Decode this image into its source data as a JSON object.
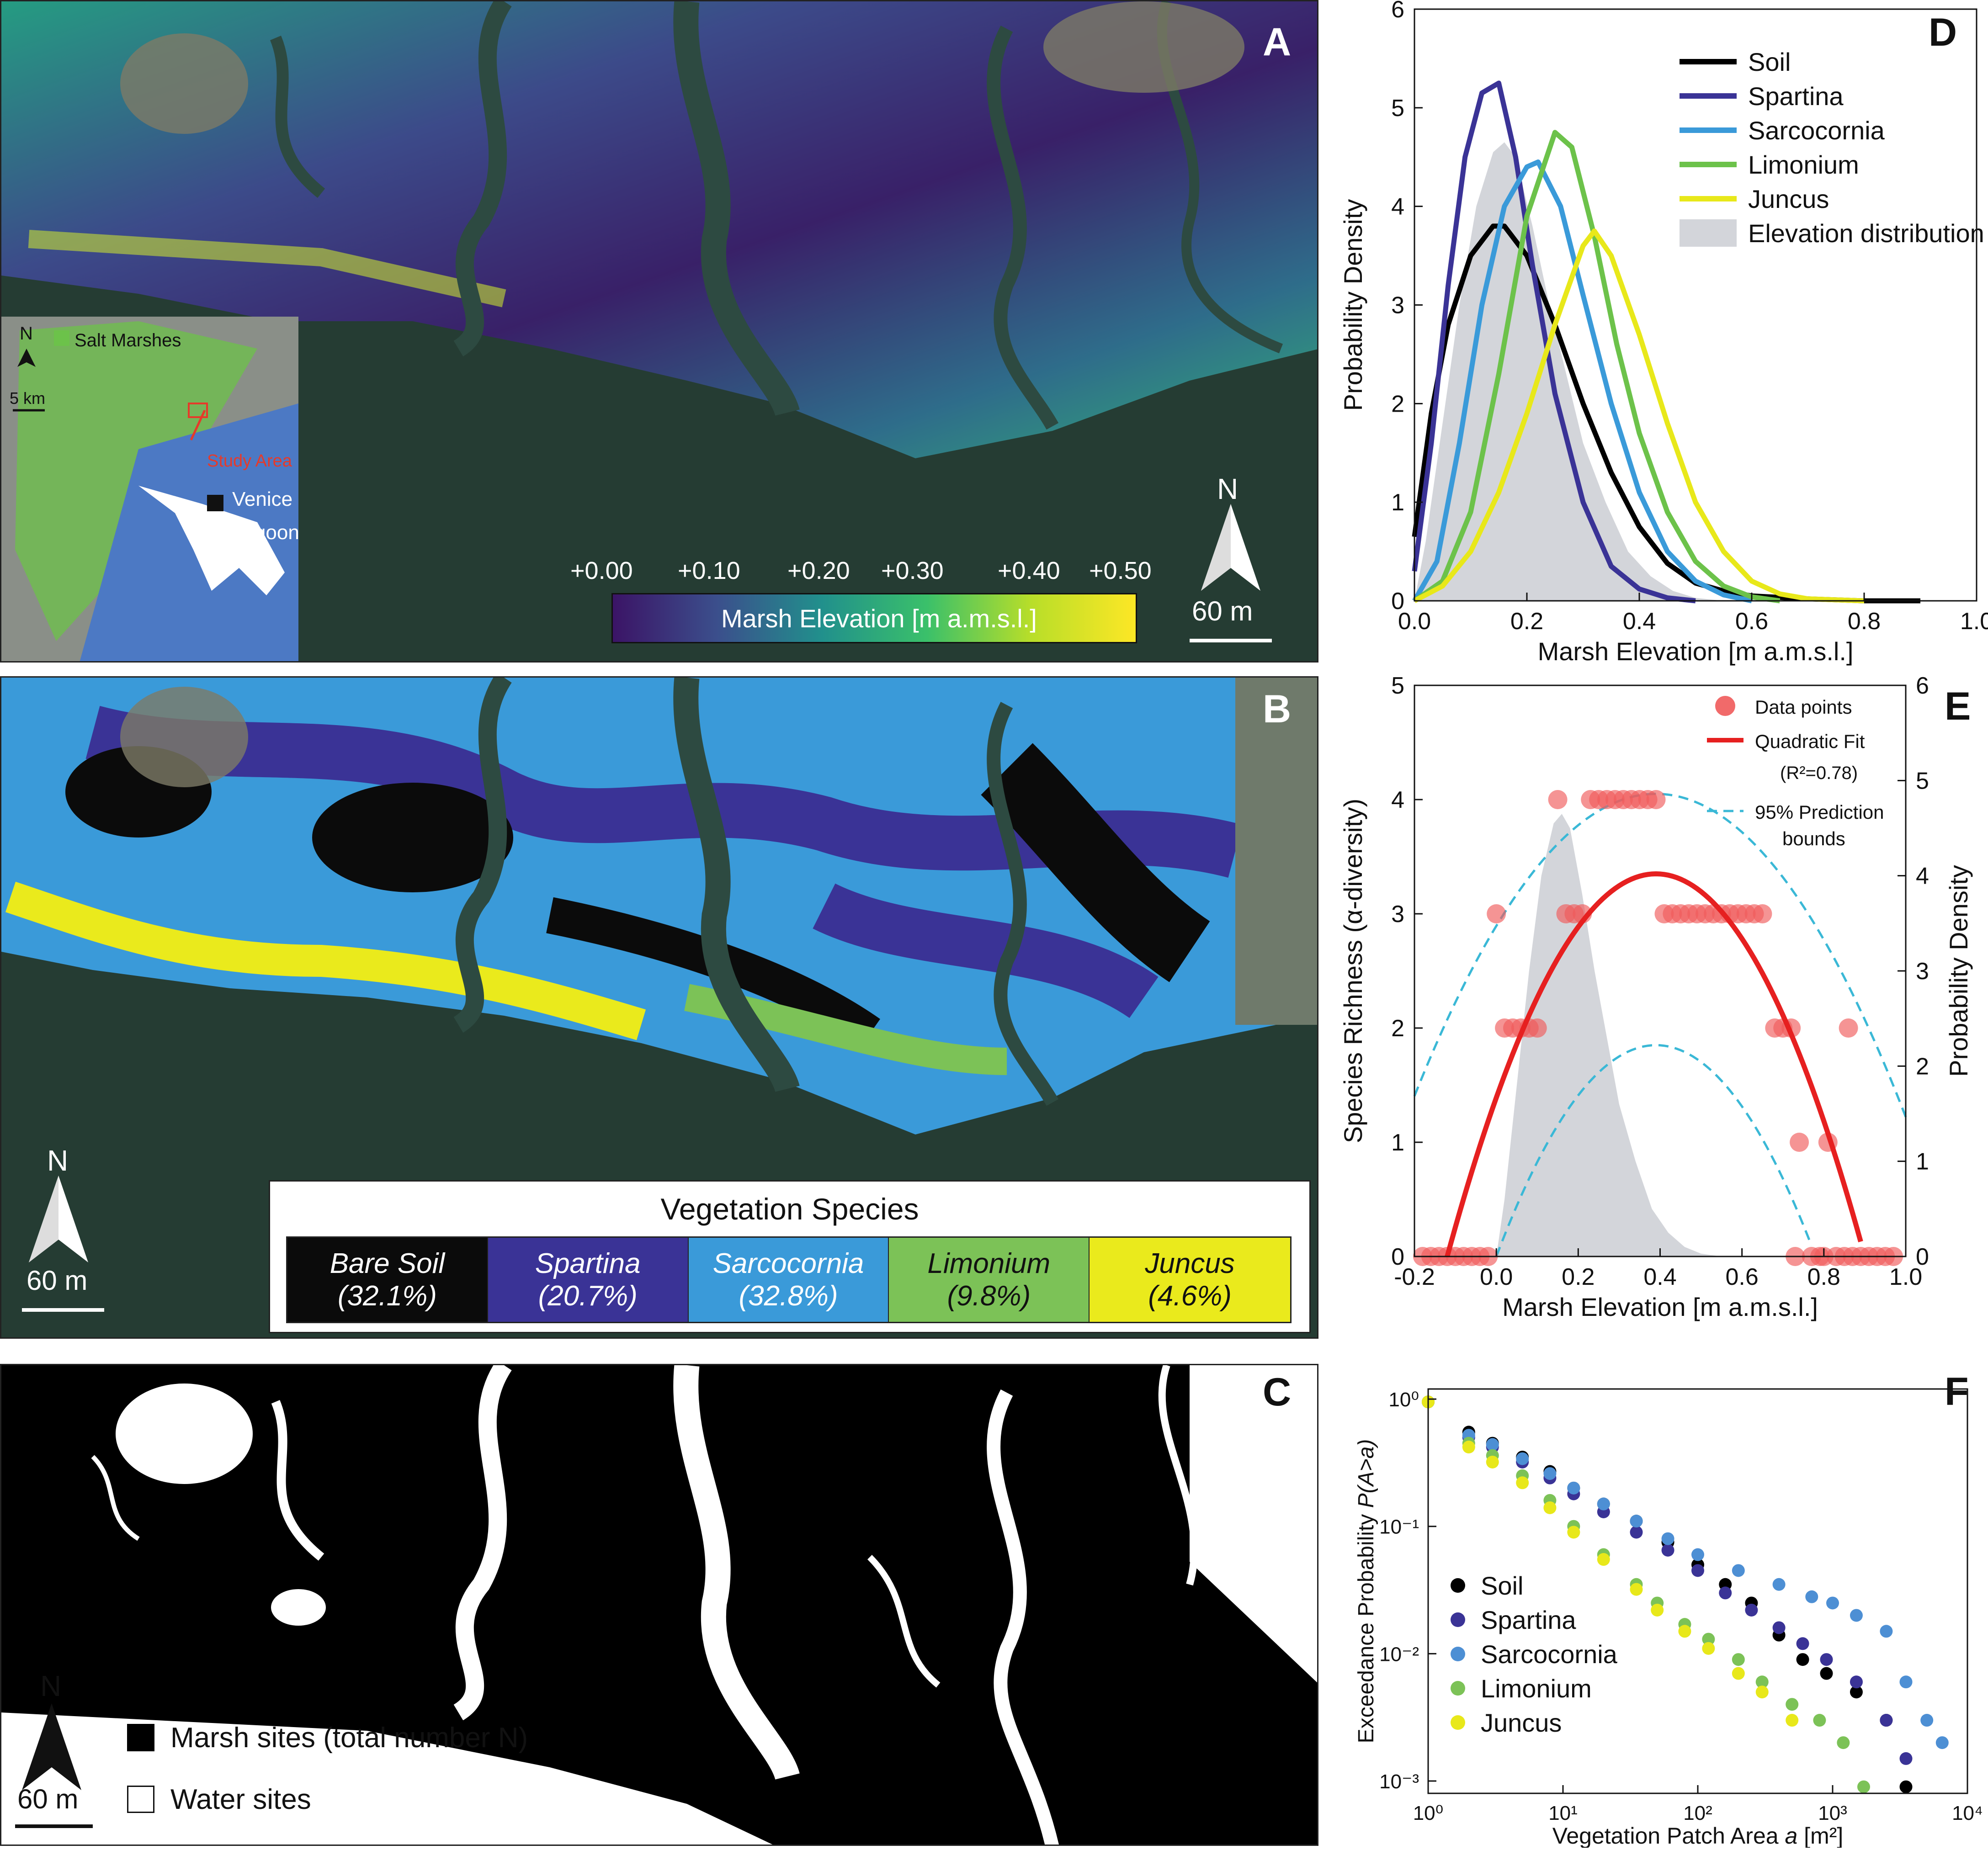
{
  "panel_a": {
    "letter": "A",
    "colorbar": {
      "title": "Marsh Elevation [m a.m.s.l.]",
      "ticks": [
        "+0.00",
        "+0.10",
        "+0.20",
        "+0.30",
        "+0.40",
        "+0.50"
      ],
      "colors": [
        "#3b1466",
        "#3b4f8c",
        "#21908c",
        "#3ac06a",
        "#b8de29",
        "#fde725"
      ]
    },
    "inset": {
      "legend": "Salt Marshes",
      "north": "N",
      "scale": "5 km",
      "study_area": "Study Area",
      "place_line1": "Venice",
      "place_line2": "Lagoon"
    },
    "north": "N",
    "scale": "60 m"
  },
  "panel_b": {
    "letter": "B",
    "legend_title": "Vegetation Species",
    "north": "N",
    "scale": "60 m",
    "species": [
      {
        "name": "Bare Soil",
        "pct": "(32.1%)",
        "color": "#0b0b0b",
        "text": "#ffffff"
      },
      {
        "name": "Spartina",
        "pct": "(20.7%)",
        "color": "#3a3396",
        "text": "#ffffff"
      },
      {
        "name": "Sarcocornia",
        "pct": "(32.8%)",
        "color": "#3a9ad9",
        "text": "#ffffff"
      },
      {
        "name": "Limonium",
        "pct": "(9.8%)",
        "color": "#7cc257",
        "text": "#111111"
      },
      {
        "name": "Juncus",
        "pct": "(4.6%)",
        "color": "#eaea1c",
        "text": "#111111"
      }
    ]
  },
  "panel_c": {
    "letter": "C",
    "north": "N",
    "scale": "60 m",
    "legend_marsh": "Marsh sites (total number N)",
    "legend_water": "Water sites"
  },
  "chart_data": [
    {
      "id": "D",
      "type": "line",
      "letter": "D",
      "xlabel": "Marsh Elevation [m a.m.s.l.]",
      "ylabel": "Probability Density",
      "xlim": [
        0,
        1.0
      ],
      "ylim": [
        0,
        6
      ],
      "xticks": [
        "0.0",
        "0.2",
        "0.4",
        "0.6",
        "0.8",
        "1.0"
      ],
      "yticks": [
        "0",
        "1",
        "2",
        "3",
        "4",
        "5",
        "6"
      ],
      "legend_position": "top-right",
      "area": {
        "name": "Elevation distribution",
        "color": "#d3d5da",
        "x": [
          0.0,
          0.02,
          0.05,
          0.08,
          0.11,
          0.14,
          0.16,
          0.18,
          0.21,
          0.24,
          0.27,
          0.3,
          0.34,
          0.38,
          0.42,
          0.46,
          0.5,
          0.55
        ],
        "y": [
          0.0,
          0.6,
          1.8,
          3.0,
          4.0,
          4.55,
          4.65,
          4.5,
          3.8,
          3.0,
          2.3,
          1.6,
          1.0,
          0.5,
          0.25,
          0.1,
          0.03,
          0.0
        ]
      },
      "series": [
        {
          "name": "Soil",
          "color": "#000000",
          "x": [
            0.0,
            0.03,
            0.06,
            0.1,
            0.14,
            0.16,
            0.2,
            0.25,
            0.3,
            0.35,
            0.4,
            0.45,
            0.5,
            0.55,
            0.6,
            0.7,
            0.8,
            0.9
          ],
          "y": [
            0.65,
            1.9,
            2.8,
            3.5,
            3.8,
            3.8,
            3.5,
            2.8,
            2.0,
            1.3,
            0.75,
            0.38,
            0.18,
            0.1,
            0.05,
            0.02,
            0.0,
            0.0
          ]
        },
        {
          "name": "Spartina",
          "color": "#3a3396",
          "x": [
            0.0,
            0.03,
            0.06,
            0.09,
            0.12,
            0.15,
            0.18,
            0.21,
            0.25,
            0.3,
            0.35,
            0.4,
            0.45,
            0.5
          ],
          "y": [
            0.3,
            1.6,
            3.2,
            4.5,
            5.15,
            5.25,
            4.5,
            3.4,
            2.1,
            1.0,
            0.35,
            0.12,
            0.03,
            0.0
          ]
        },
        {
          "name": "Sarcocornia",
          "color": "#3a9ad9",
          "x": [
            0.0,
            0.04,
            0.08,
            0.12,
            0.16,
            0.2,
            0.22,
            0.26,
            0.3,
            0.35,
            0.4,
            0.45,
            0.5,
            0.55,
            0.6
          ],
          "y": [
            0.0,
            0.4,
            1.6,
            3.0,
            4.0,
            4.4,
            4.45,
            4.0,
            3.1,
            2.0,
            1.1,
            0.5,
            0.2,
            0.06,
            0.0
          ]
        },
        {
          "name": "Limonium",
          "color": "#6cc24a",
          "x": [
            0.0,
            0.05,
            0.1,
            0.15,
            0.2,
            0.25,
            0.28,
            0.32,
            0.36,
            0.4,
            0.45,
            0.5,
            0.55,
            0.6,
            0.65
          ],
          "y": [
            0.0,
            0.2,
            0.9,
            2.3,
            3.9,
            4.75,
            4.6,
            3.7,
            2.6,
            1.7,
            0.9,
            0.4,
            0.15,
            0.04,
            0.0
          ]
        },
        {
          "name": "Juncus",
          "color": "#e8e81a",
          "x": [
            0.0,
            0.05,
            0.1,
            0.15,
            0.2,
            0.25,
            0.3,
            0.32,
            0.35,
            0.4,
            0.45,
            0.5,
            0.55,
            0.6,
            0.65,
            0.7,
            0.8
          ],
          "y": [
            0.0,
            0.15,
            0.5,
            1.1,
            1.9,
            2.8,
            3.6,
            3.75,
            3.5,
            2.7,
            1.8,
            1.0,
            0.5,
            0.2,
            0.07,
            0.02,
            0.0
          ]
        }
      ]
    },
    {
      "id": "E",
      "type": "scatter",
      "letter": "E",
      "xlabel": "Marsh Elevation [m a.m.s.l.]",
      "ylabel": "Species Richness (α-diversity)",
      "ylabel_right": "Probability Density",
      "xlim": [
        -0.2,
        1.0
      ],
      "ylim": [
        0,
        5
      ],
      "ylim_right": [
        0,
        6
      ],
      "xticks": [
        "-0.2",
        "0.0",
        "0.2",
        "0.4",
        "0.6",
        "0.8",
        "1.0"
      ],
      "yticks": [
        "0",
        "1",
        "2",
        "3",
        "4",
        "5"
      ],
      "yticks_right": [
        "0",
        "1",
        "2",
        "3",
        "4",
        "5",
        "6"
      ],
      "legend": {
        "points": "Data points",
        "fit": "Quadratic Fit",
        "fit_r2": "(R²=0.78)",
        "bounds_line1": "95% Prediction",
        "bounds_line2": "bounds"
      },
      "points": {
        "color": "#f05a5a",
        "x": [
          -0.18,
          -0.16,
          -0.14,
          -0.12,
          -0.1,
          -0.08,
          -0.06,
          -0.04,
          -0.02,
          0.0,
          0.02,
          0.04,
          0.06,
          0.08,
          0.1,
          0.15,
          0.17,
          0.19,
          0.21,
          0.23,
          0.25,
          0.27,
          0.29,
          0.31,
          0.33,
          0.35,
          0.37,
          0.39,
          0.41,
          0.43,
          0.45,
          0.47,
          0.49,
          0.51,
          0.53,
          0.55,
          0.57,
          0.59,
          0.61,
          0.63,
          0.65,
          0.68,
          0.7,
          0.72,
          0.74,
          0.77,
          0.79,
          0.81,
          0.83,
          0.85,
          0.87,
          0.89,
          0.91,
          0.93,
          0.95,
          0.97,
          0.73,
          0.8,
          0.86
        ],
        "y": [
          0,
          0,
          0,
          0,
          0,
          0,
          0,
          0,
          0,
          3,
          2,
          2,
          2,
          2,
          2,
          4,
          3,
          3,
          3,
          4,
          4,
          4,
          4,
          4,
          4,
          4,
          4,
          4,
          3,
          3,
          3,
          3,
          3,
          3,
          3,
          3,
          3,
          3,
          3,
          3,
          3,
          2,
          2,
          2,
          1,
          0,
          0,
          1,
          0,
          0,
          0,
          0,
          0,
          0,
          0,
          0,
          0,
          0,
          2
        ]
      },
      "fit": {
        "name": "Quadratic Fit",
        "color": "#e62020",
        "root_low": -0.12,
        "root_high": 0.9,
        "peak_x": 0.39,
        "peak_y": 3.35
      },
      "bounds": {
        "color": "#3ab8d6",
        "upper": {
          "root_low": -0.34,
          "root_high": 1.12,
          "peak_x": 0.39,
          "peak_y": 4.05
        },
        "lower": {
          "root_low": 0.0,
          "root_high": 0.78,
          "peak_x": 0.39,
          "peak_y": 1.85
        }
      },
      "area": {
        "color": "#d3d5da",
        "x": [
          0.0,
          0.02,
          0.05,
          0.08,
          0.11,
          0.14,
          0.16,
          0.18,
          0.21,
          0.24,
          0.27,
          0.3,
          0.34,
          0.38,
          0.42,
          0.46,
          0.5,
          0.55
        ],
        "y_right": [
          0.0,
          0.6,
          1.8,
          3.0,
          4.0,
          4.55,
          4.65,
          4.5,
          3.8,
          3.0,
          2.3,
          1.6,
          1.0,
          0.5,
          0.25,
          0.1,
          0.03,
          0.0
        ]
      }
    },
    {
      "id": "F",
      "type": "scatter",
      "letter": "F",
      "xlabel_pre": "Vegetation Patch Area ",
      "xlabel_var": "a",
      "xlabel_post": " [m²]",
      "ylabel_pre": "Exceedance Probability ",
      "ylabel_var": "P(A>a)",
      "xscale": "log",
      "yscale": "log",
      "xlim": [
        1,
        10000
      ],
      "ylim": [
        0.0008,
        1.2
      ],
      "xticks": [
        "10⁰",
        "10¹",
        "10²",
        "10³",
        "10⁴"
      ],
      "yticks": [
        "10⁰",
        "10⁻¹",
        "10⁻²",
        "10⁻³"
      ],
      "legend_position": "bottom-left",
      "series": [
        {
          "name": "Soil",
          "color": "#000000",
          "x": [
            1,
            2,
            3,
            5,
            8,
            12,
            20,
            35,
            60,
            100,
            160,
            250,
            400,
            600,
            900,
            1500,
            2500,
            3500
          ],
          "y": [
            0.95,
            0.55,
            0.45,
            0.35,
            0.27,
            0.2,
            0.15,
            0.11,
            0.075,
            0.05,
            0.035,
            0.025,
            0.014,
            0.009,
            0.007,
            0.005,
            0.003,
            0.0009
          ]
        },
        {
          "name": "Spartina",
          "color": "#3a3396",
          "x": [
            1,
            2,
            3,
            5,
            8,
            12,
            20,
            35,
            60,
            100,
            160,
            250,
            400,
            600,
            900,
            1500,
            2500,
            3500
          ],
          "y": [
            0.95,
            0.5,
            0.42,
            0.32,
            0.24,
            0.18,
            0.13,
            0.09,
            0.065,
            0.045,
            0.03,
            0.022,
            0.016,
            0.012,
            0.009,
            0.006,
            0.003,
            0.0015
          ]
        },
        {
          "name": "Sarcocornia",
          "color": "#4d8fd4",
          "x": [
            1,
            2,
            3,
            5,
            8,
            12,
            20,
            35,
            60,
            100,
            200,
            400,
            700,
            1000,
            1500,
            2500,
            3500,
            5000,
            6500
          ],
          "y": [
            0.95,
            0.52,
            0.44,
            0.34,
            0.26,
            0.2,
            0.15,
            0.11,
            0.08,
            0.06,
            0.045,
            0.035,
            0.028,
            0.025,
            0.02,
            0.015,
            0.006,
            0.003,
            0.002
          ]
        },
        {
          "name": "Limonium",
          "color": "#7cc257",
          "x": [
            1,
            2,
            3,
            5,
            8,
            12,
            20,
            35,
            50,
            80,
            120,
            200,
            300,
            500,
            800,
            1200,
            1700
          ],
          "y": [
            0.95,
            0.45,
            0.36,
            0.25,
            0.16,
            0.1,
            0.06,
            0.035,
            0.025,
            0.017,
            0.013,
            0.009,
            0.006,
            0.004,
            0.003,
            0.002,
            0.0009
          ]
        },
        {
          "name": "Juncus",
          "color": "#e8e81a",
          "x": [
            1,
            2,
            3,
            5,
            8,
            12,
            20,
            35,
            50,
            80,
            120,
            200,
            300,
            500
          ],
          "y": [
            0.95,
            0.42,
            0.32,
            0.22,
            0.14,
            0.09,
            0.055,
            0.032,
            0.022,
            0.015,
            0.011,
            0.007,
            0.005,
            0.003
          ]
        }
      ]
    }
  ]
}
